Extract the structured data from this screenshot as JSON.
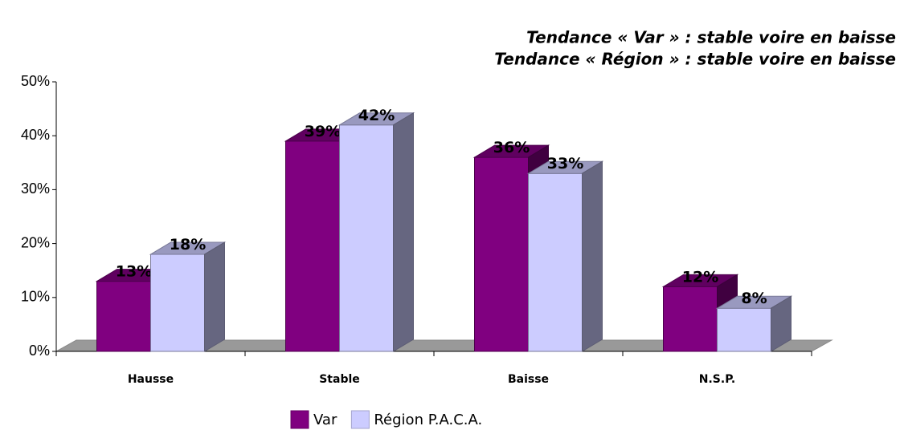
{
  "chart_data": {
    "type": "bar3d",
    "annotations": [
      "Tendance « Var » : stable voire en baisse",
      "Tendance « Région » : stable voire en baisse"
    ],
    "categories": [
      "Hausse",
      "Stable",
      "Baisse",
      "N.S.P."
    ],
    "series": [
      {
        "name": "Var",
        "color": "#800080",
        "values": [
          13,
          39,
          36,
          12
        ],
        "value_labels": [
          "13%",
          "39%",
          "36%",
          "12%"
        ]
      },
      {
        "name": "Région P.A.C.A.",
        "color": "#ccccff",
        "values": [
          18,
          42,
          33,
          8
        ],
        "value_labels": [
          "18%",
          "42%",
          "33%",
          "8%"
        ]
      }
    ],
    "ylim": [
      0,
      50
    ],
    "yticks": [
      {
        "value": 0,
        "label": "0%"
      },
      {
        "value": 10,
        "label": "10%"
      },
      {
        "value": 20,
        "label": "20%"
      },
      {
        "value": 30,
        "label": "30%"
      },
      {
        "value": 40,
        "label": "40%"
      },
      {
        "value": 50,
        "label": "50%"
      }
    ],
    "legend": "bottom"
  }
}
